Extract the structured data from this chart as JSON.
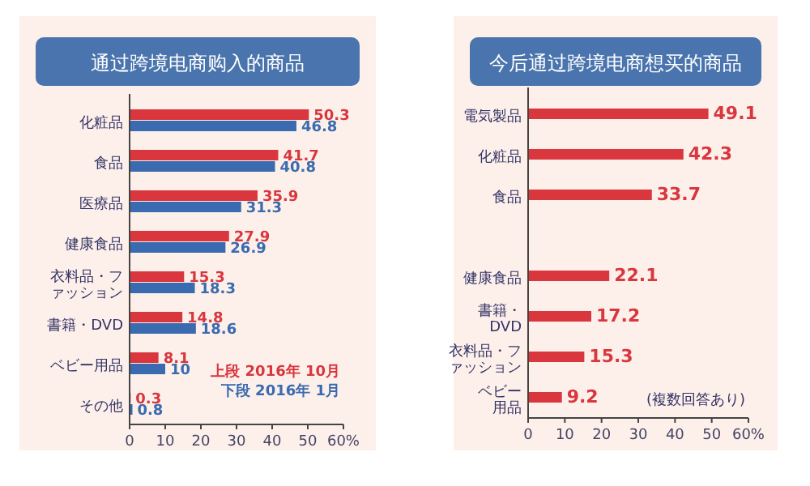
{
  "chart_data": [
    {
      "type": "bar",
      "orientation": "horizontal",
      "title": "通过跨境电商购入的商品",
      "categories": [
        "化粧品",
        "食品",
        "医療品",
        "健康食品",
        "衣料品・ファッション",
        "書籍・DVD",
        "ベビー用品",
        "その他"
      ],
      "series": [
        {
          "name": "上段 2016年 10月",
          "color": "#d9363e",
          "values": [
            50.3,
            41.7,
            35.9,
            27.9,
            15.3,
            14.8,
            8.1,
            0.3
          ]
        },
        {
          "name": "下段 2016年 1月",
          "color": "#3a6bb0",
          "values": [
            46.8,
            40.8,
            31.3,
            26.9,
            18.3,
            18.6,
            10.0,
            0.8
          ]
        }
      ],
      "xlim": [
        0,
        60
      ],
      "xticks": [
        0,
        10,
        20,
        30,
        40,
        50,
        {
          "value": 60,
          "label": "60%"
        }
      ],
      "data_labels": true,
      "legend": "bottom right"
    },
    {
      "type": "bar",
      "orientation": "horizontal",
      "title": "今后通过跨境电商想买的商品",
      "categories": [
        "電気製品",
        "化粧品",
        "食品",
        null,
        "健康食品",
        "書籍・DVD",
        "衣料品・ファッション",
        "ベビー用品"
      ],
      "series": [
        {
          "color": "#d9363e",
          "values": [
            49.1,
            42.3,
            33.7,
            null,
            22.1,
            17.2,
            15.3,
            9.2
          ]
        }
      ],
      "xlim": [
        0,
        60
      ],
      "xticks": [
        0,
        10,
        20,
        30,
        40,
        50,
        {
          "value": 60,
          "label": "60%"
        }
      ],
      "data_labels": true,
      "annotations": [
        "(複数回答あり)"
      ]
    }
  ]
}
